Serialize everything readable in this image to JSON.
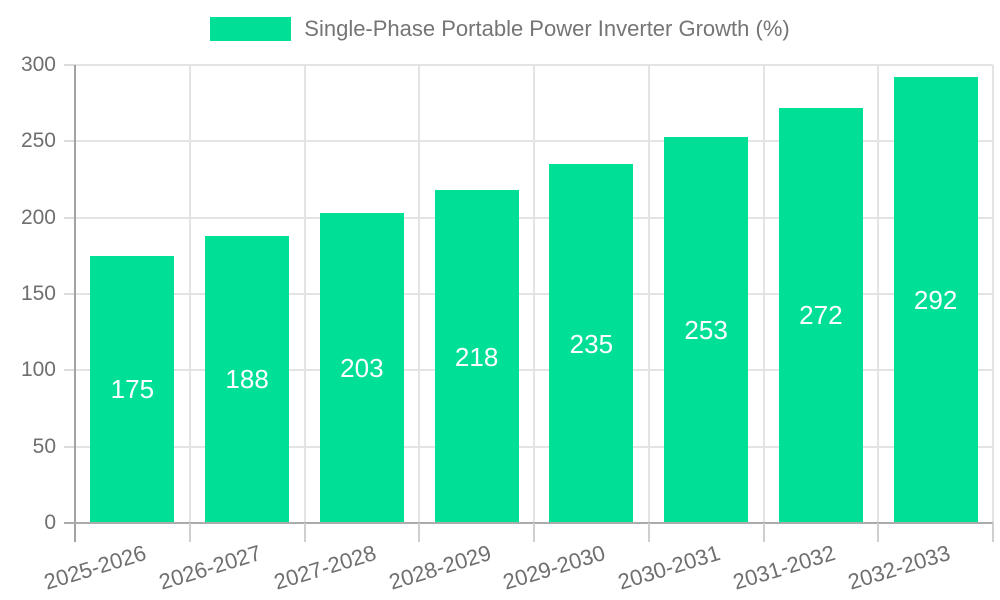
{
  "legend": {
    "label": "Single-Phase Portable Power Inverter Growth (%)"
  },
  "chart_data": {
    "type": "bar",
    "title": "Single-Phase Portable Power Inverter Growth (%)",
    "categories": [
      "2025-2026",
      "2026-2027",
      "2027-2028",
      "2028-2029",
      "2029-2030",
      "2030-2031",
      "2031-2032",
      "2032-2033"
    ],
    "values": [
      175,
      188,
      203,
      218,
      235,
      253,
      272,
      292
    ],
    "xlabel": "",
    "ylabel": "",
    "ylim": [
      0,
      300
    ],
    "yticks": [
      0,
      50,
      100,
      150,
      200,
      250,
      300
    ],
    "grid": true,
    "legend_position": "top",
    "bar_color": "#00df96",
    "grid_color": "#e4e4e4",
    "axis_color": "#a3a3a3",
    "tick_label_color": "#6f6f6f",
    "value_label_color": "#ffffff",
    "legend_text_color": "#757575"
  }
}
